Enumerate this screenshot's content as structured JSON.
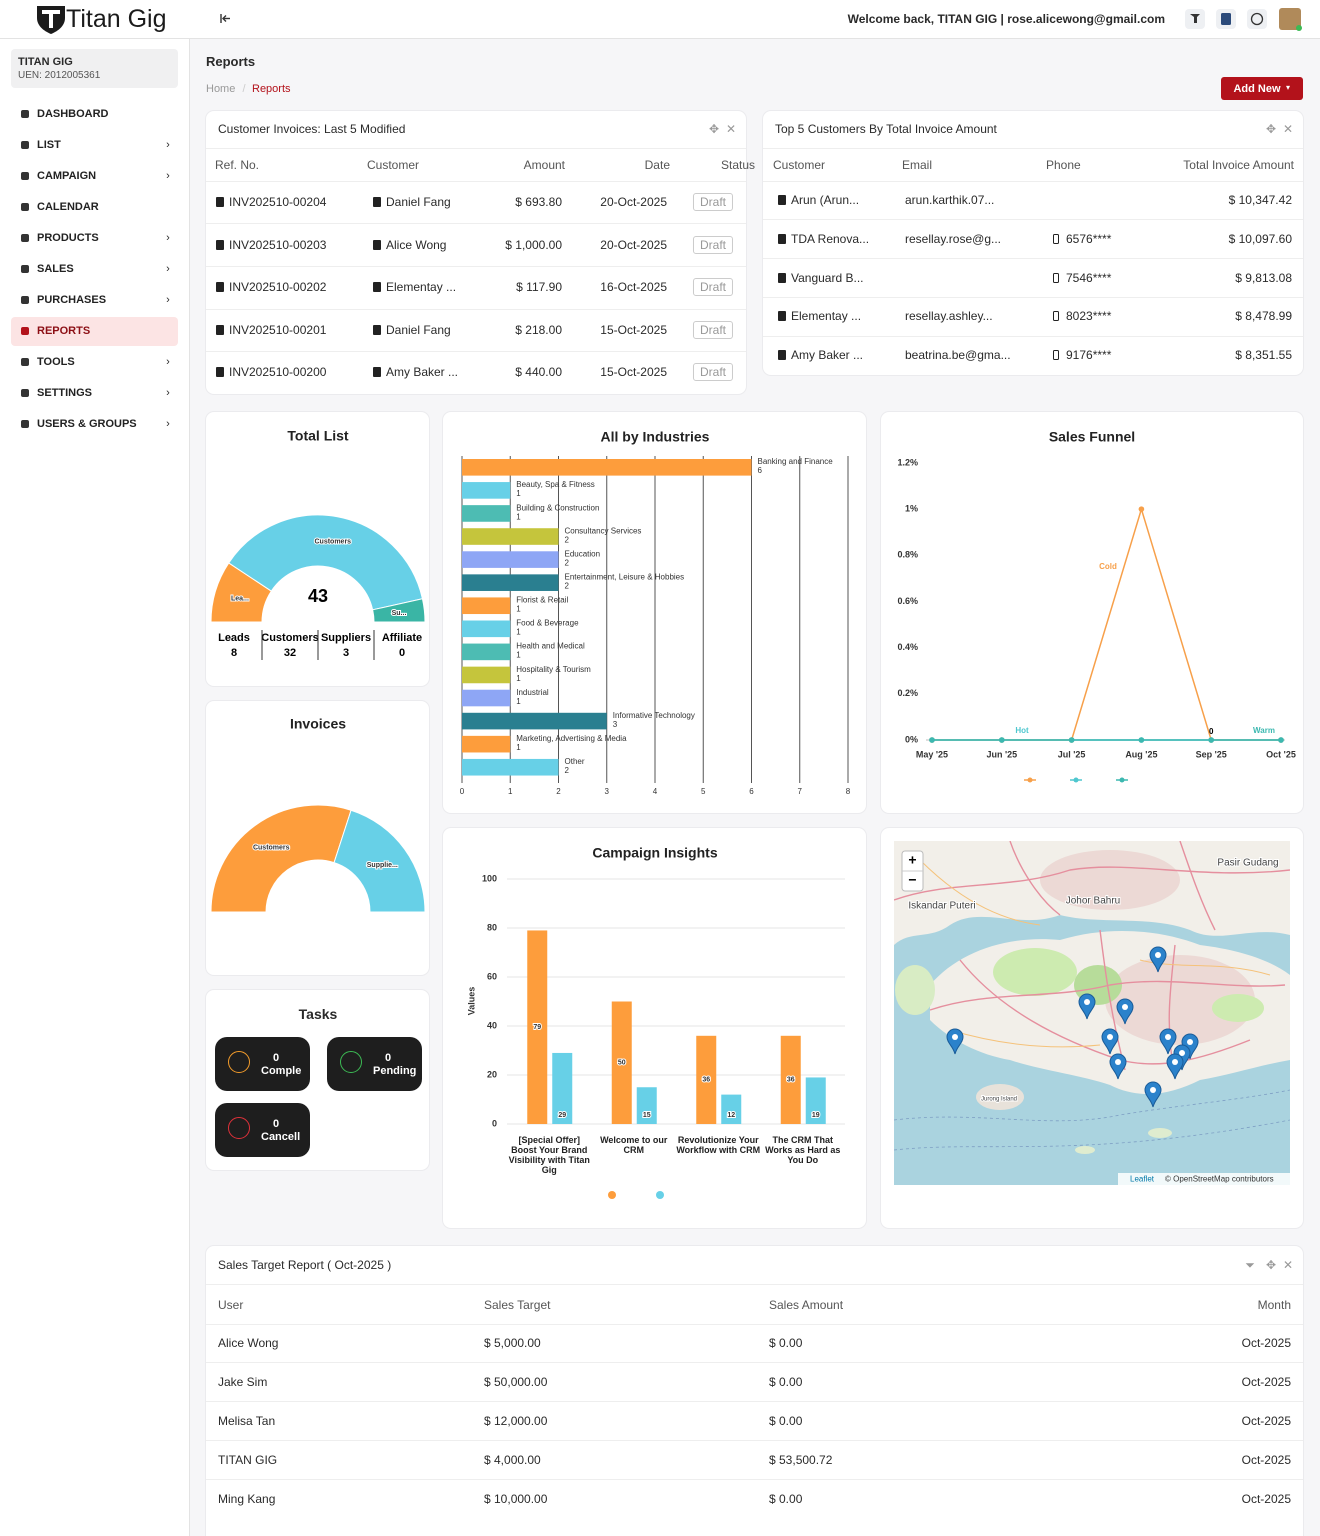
{
  "header": {
    "brand": "Titan Gig",
    "welcome": "Welcome back, TITAN GIG | rose.alicewong@gmail.com"
  },
  "sidebar": {
    "company": "TITAN GIG",
    "uen": "UEN: 2012005361",
    "menu": [
      {
        "label": "DASHBOARD",
        "submenu": false
      },
      {
        "label": "LIST",
        "submenu": true
      },
      {
        "label": "CAMPAIGN",
        "submenu": true
      },
      {
        "label": "CALENDAR",
        "submenu": false
      },
      {
        "label": "PRODUCTS",
        "submenu": true
      },
      {
        "label": "SALES",
        "submenu": true
      },
      {
        "label": "PURCHASES",
        "submenu": true
      },
      {
        "label": "REPORTS",
        "submenu": false,
        "active": true
      },
      {
        "label": "TOOLS",
        "submenu": true
      },
      {
        "label": "SETTINGS",
        "submenu": true
      },
      {
        "label": "USERS & GROUPS",
        "submenu": true
      }
    ]
  },
  "page": {
    "title": "Reports",
    "breadcrumb": [
      "Home",
      "Reports"
    ],
    "add_button": "Add New"
  },
  "invoices_table": {
    "title": "Customer Invoices: Last 5 Modified",
    "columns": [
      "Ref. No.",
      "Customer",
      "Amount",
      "Date",
      "Status"
    ],
    "rows": [
      [
        "INV202510-00204",
        "Daniel Fang",
        "$ 693.80",
        "20-Oct-2025",
        "Draft"
      ],
      [
        "INV202510-00203",
        "Alice Wong",
        "$ 1,000.00",
        "20-Oct-2025",
        "Draft"
      ],
      [
        "INV202510-00202",
        "Elementay ...",
        "$ 117.90",
        "16-Oct-2025",
        "Draft"
      ],
      [
        "INV202510-00201",
        "Daniel Fang",
        "$ 218.00",
        "15-Oct-2025",
        "Draft"
      ],
      [
        "INV202510-00200",
        "Amy Baker ...",
        "$ 440.00",
        "15-Oct-2025",
        "Draft"
      ]
    ]
  },
  "customers_table": {
    "title": "Top 5 Customers By Total Invoice Amount",
    "columns": [
      "Customer",
      "Email",
      "Phone",
      "Total Invoice Amount"
    ],
    "rows": [
      [
        "Arun (Arun...",
        "arun.karthik.07...",
        null,
        "$ 10,347.42"
      ],
      [
        "TDA Renova...",
        "resellay.rose@g...",
        "6576****",
        "$ 10,097.60"
      ],
      [
        "Vanguard B...",
        null,
        "7546****",
        "$ 9,813.08"
      ],
      [
        "Elementay ...",
        "resellay.ashley...",
        "8023****",
        "$ 8,478.99"
      ],
      [
        "Amy Baker ...",
        "beatrina.be@gma...",
        "9176****",
        "$ 8,351.55"
      ]
    ]
  },
  "tasks": {
    "title": "Tasks",
    "items": [
      {
        "count": 0,
        "label": "Comple"
      },
      {
        "count": 0,
        "label": "Pending"
      },
      {
        "count": 0,
        "label": "Cancell"
      }
    ]
  },
  "map": {
    "labels": [
      "Pasir Gudang",
      "Johor Bahru",
      "Iskandar Puteri",
      "Jurong Island"
    ],
    "zoom_in": "+",
    "zoom_out": "−",
    "leaflet": "Leaflet",
    "credit": "© OpenStreetMap contributors"
  },
  "sales_target_table": {
    "title": "Sales Target Report ( Oct-2025 )",
    "columns": [
      "User",
      "Sales Target",
      "Sales Amount",
      "Month"
    ],
    "rows": [
      [
        "Alice Wong",
        "$ 5,000.00",
        "$ 0.00",
        "Oct-2025"
      ],
      [
        "Jake Sim",
        "$ 50,000.00",
        "$ 0.00",
        "Oct-2025"
      ],
      [
        "Melisa Tan",
        "$ 12,000.00",
        "$ 0.00",
        "Oct-2025"
      ],
      [
        "TITAN GIG",
        "$ 4,000.00",
        "$ 53,500.72",
        "Oct-2025"
      ],
      [
        "Ming Kang",
        "$ 10,000.00",
        "$ 0.00",
        "Oct-2025"
      ]
    ]
  },
  "chart_data": [
    {
      "type": "semi-donut",
      "title": "Total List",
      "total": 43,
      "categories": [
        "Leads",
        "Customers",
        "Suppliers",
        "Affiliate"
      ],
      "values": [
        8,
        32,
        3,
        0
      ],
      "slice_labels": [
        "Lea...",
        "Customers",
        "Su...",
        null
      ],
      "colors": [
        "#fd9d3c",
        "#67d0e7",
        "#3ab5a5",
        "#8e6bd6"
      ],
      "legend": true
    },
    {
      "type": "semi-donut",
      "title": "Invoices",
      "categories": [
        "Customers",
        "Suppliers"
      ],
      "values": [
        60,
        40
      ],
      "slice_labels": [
        "Customers",
        "Supplie..."
      ],
      "colors": [
        "#fd9d3c",
        "#67d0e7"
      ],
      "legend": false
    },
    {
      "type": "bar",
      "orientation": "horizontal",
      "title": "All by Industries",
      "categories": [
        "Banking and Finance",
        "Beauty, Spa & Fitness",
        "Building & Construction",
        "Consultancy Services",
        "Education",
        "Entertainment, Leisure & Hobbies",
        "Florist & Retail",
        "Food & Beverage",
        "Health and Medical",
        "Hospitality & Tourism",
        "Industrial",
        "Informative Technology",
        "Marketing, Advertising & Media",
        "Other"
      ],
      "values": [
        6,
        1,
        1,
        2,
        2,
        2,
        1,
        1,
        1,
        1,
        1,
        3,
        1,
        2
      ],
      "colors": [
        "#fd9d3c",
        "#67d0e7",
        "#4dbcb3",
        "#c5c53c",
        "#8ea6f5",
        "#2a7f90",
        "#fd9d3c",
        "#67d0e7",
        "#4dbcb3",
        "#c5c53c",
        "#8ea6f5",
        "#2a7f90",
        "#fd9d3c",
        "#67d0e7"
      ],
      "xlim": [
        0,
        8
      ],
      "xticks": [
        0,
        1,
        2,
        3,
        4,
        5,
        6,
        7,
        8
      ],
      "grid": true
    },
    {
      "type": "line",
      "title": "Sales Funnel",
      "categories": [
        "May '25",
        "Jun '25",
        "Jul '25",
        "Aug '25",
        "Sep '25",
        "Oct '25"
      ],
      "series": [
        {
          "name": "Cold",
          "color": "#f7a04a",
          "values": [
            0,
            0,
            0,
            1,
            0,
            0
          ],
          "value_labels": [
            null,
            null,
            null,
            null,
            "0",
            null
          ]
        },
        {
          "name": "Hot",
          "color": "#4fc7cf",
          "values": [
            0,
            0,
            0,
            0,
            0,
            0
          ]
        },
        {
          "name": "Warm",
          "color": "#3cb8b0",
          "values": [
            0,
            0,
            0,
            0,
            0,
            0
          ]
        }
      ],
      "ylim": [
        0,
        1.2
      ],
      "yticks": [
        {
          "value": 0,
          "label": "0%"
        },
        {
          "value": 0.2,
          "label": "0.2%"
        },
        {
          "value": 0.4,
          "label": "0.4%"
        },
        {
          "value": 0.6,
          "label": "0.6%"
        },
        {
          "value": 0.8,
          "label": "0.8%"
        },
        {
          "value": 1,
          "label": "1%"
        },
        {
          "value": 1.2,
          "label": "1.2%"
        }
      ]
    },
    {
      "type": "bar",
      "orientation": "vertical",
      "title": "Campaign Insights",
      "y_label": "Values",
      "categories": [
        "[Special Offer] Boost Your Brand Visibility with Titan Gig",
        "Welcome to our CRM",
        "Revolutionize Your Workflow with CRM",
        "The CRM That Works as Hard as You Do"
      ],
      "series": [
        {
          "color": "#fd9d3c",
          "values": [
            79,
            50,
            36,
            36
          ]
        },
        {
          "color": "#67d0e7",
          "values": [
            29,
            15,
            12,
            19
          ]
        }
      ],
      "ylim": [
        0,
        100
      ],
      "yticks": [
        0,
        20,
        40,
        60,
        80,
        100
      ],
      "grid": true
    }
  ]
}
